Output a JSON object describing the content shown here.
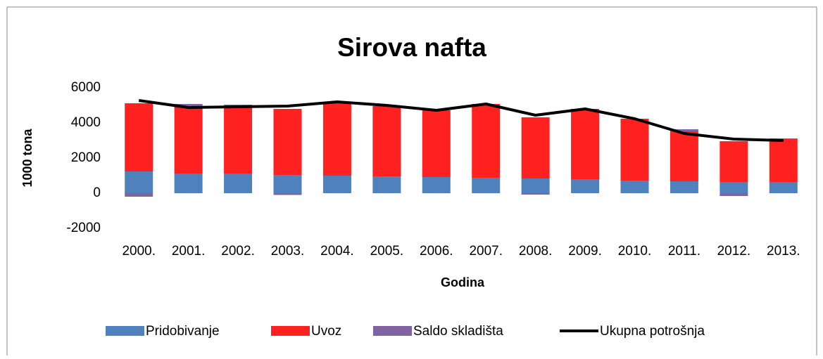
{
  "chart_data": {
    "type": "bar",
    "title": "Sirova nafta",
    "x_label": "Godina",
    "y_label": "1000 tona",
    "stacked": true,
    "categories": [
      "2000.",
      "2001.",
      "2002.",
      "2003.",
      "2004.",
      "2005.",
      "2006.",
      "2007.",
      "2008.",
      "2009.",
      "2010.",
      "2011.",
      "2012.",
      "2013."
    ],
    "series": [
      {
        "name": "Pridobivanje",
        "color": "#4f81bd",
        "values": [
          1240,
          1120,
          1120,
          1040,
          1000,
          960,
          920,
          880,
          840,
          800,
          720,
          680,
          640,
          640
        ]
      },
      {
        "name": "Uvoz",
        "color": "#ff2020",
        "values": [
          3880,
          3840,
          3840,
          3760,
          4120,
          4000,
          3800,
          4200,
          3480,
          4000,
          3520,
          2840,
          2320,
          2440
        ]
      },
      {
        "name": "Saldo skladišta",
        "color": "#8064a2",
        "values": [
          -200,
          120,
          80,
          -100,
          0,
          0,
          0,
          0,
          -80,
          0,
          0,
          120,
          -160,
          40
        ]
      },
      {
        "name": "Ukupna potrošnja",
        "color": "#000000",
        "type": "line",
        "values": [
          5280,
          4880,
          4920,
          4960,
          5200,
          5000,
          4720,
          5080,
          4440,
          4800,
          4240,
          3400,
          3080,
          3000
        ]
      }
    ],
    "ylim": [
      -2000,
      6000
    ],
    "yticks": [
      -2000,
      0,
      2000,
      4000,
      6000
    ],
    "legend": "bottom"
  }
}
